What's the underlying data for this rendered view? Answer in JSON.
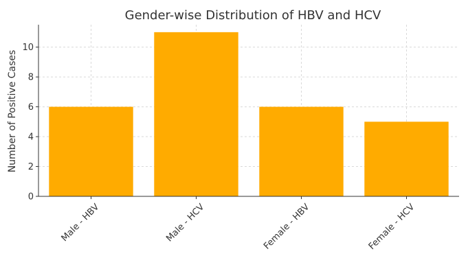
{
  "chart_data": {
    "type": "bar",
    "title": "Gender-wise Distribution of HBV and HCV",
    "xlabel": "",
    "ylabel": "Number of Positive Cases",
    "categories": [
      "Male - HBV",
      "Male - HCV",
      "Female - HBV",
      "Female - HCV"
    ],
    "values": [
      6,
      11,
      6,
      5
    ],
    "ylim": [
      0,
      11.5
    ],
    "yticks": [
      0,
      2,
      4,
      6,
      8,
      10
    ],
    "grid": true,
    "bar_color": "#ffab00"
  }
}
